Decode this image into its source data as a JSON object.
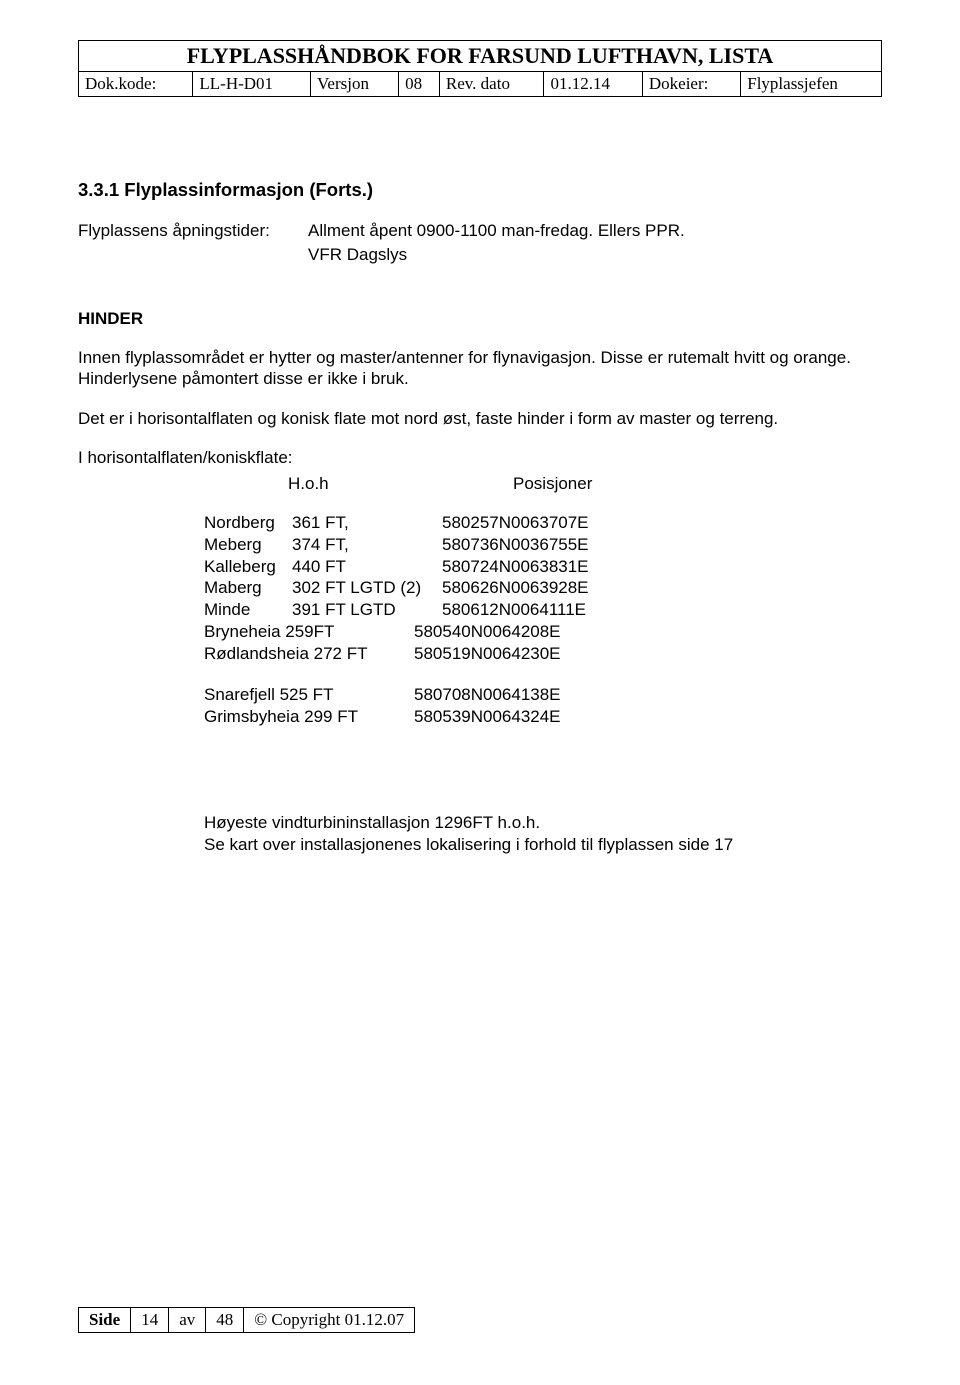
{
  "header": {
    "title": "FLYPLASSHÅNDBOK FOR FARSUND LUFTHAVN, LISTA",
    "dokkode_label": "Dok.kode:",
    "dokkode": "LL-H-D01",
    "versjon_label": "Versjon",
    "versjon": "08",
    "revdato_label": "Rev. dato",
    "revdato": "01.12.14",
    "dokeier_label": "Dokeier:",
    "dokeier": "Flyplassjefen"
  },
  "section": {
    "number_title": "3.3.1  Flyplassinformasjon (Forts.)",
    "opening_label": "Flyplassens åpningstider:",
    "opening_line1": "Allment åpent 0900-1100 man-fredag. Ellers PPR.",
    "opening_line2": "VFR Dagslys"
  },
  "hinder": {
    "heading": "HINDER",
    "para1": "Innen flyplassområdet er hytter og master/antenner for flynavigasjon. Disse er rutemalt hvitt og orange. Hinderlysene påmontert disse er ikke i bruk.",
    "para2": "Det er i horisontalflaten og konisk flate mot nord øst, faste hinder i form av master og terreng.",
    "para3": "I horisontalflaten/koniskflate:",
    "hoh_label": "H.o.h",
    "pos_label": "Posisjoner"
  },
  "obstacles_a": [
    {
      "name": "Nordberg",
      "ft": "361 FT,",
      "pos": "580257N0063707E"
    },
    {
      "name": "Meberg",
      "ft": "374 FT,",
      "pos": "580736N0036755E"
    },
    {
      "name": "Kalleberg",
      "ft": "440 FT",
      "pos": "580724N0063831E"
    },
    {
      "name": "Maberg",
      "ft": "302 FT  LGTD (2)",
      "pos": "580626N0063928E"
    },
    {
      "name": "Minde",
      "ft": "391 FT  LGTD",
      "pos": "580612N0064111E"
    },
    {
      "name": "Bryneheia",
      "ft": "259FT",
      "pos": "580540N0064208E",
      "wide": true
    },
    {
      "name": "Rødlandsheia",
      "ft": "272 FT",
      "pos": "580519N0064230E",
      "wide": true
    }
  ],
  "obstacles_b": [
    {
      "name": "Snarefjell",
      "ft": "525 FT",
      "pos": "580708N0064138E",
      "wide": true
    },
    {
      "name": "Grimsbyheia",
      "ft": "299 FT",
      "pos": "580539N0064324E",
      "wide": true
    }
  ],
  "footnote": {
    "line1": "Høyeste vindturbininstallasjon  1296FT h.o.h.",
    "line2": "Se kart over installasjonenes lokalisering i forhold til flyplassen side 17"
  },
  "footer": {
    "side_label": "Side",
    "page": "14",
    "av_label": "av",
    "total": "48",
    "copyright": "© Copyright  01.12.07"
  }
}
